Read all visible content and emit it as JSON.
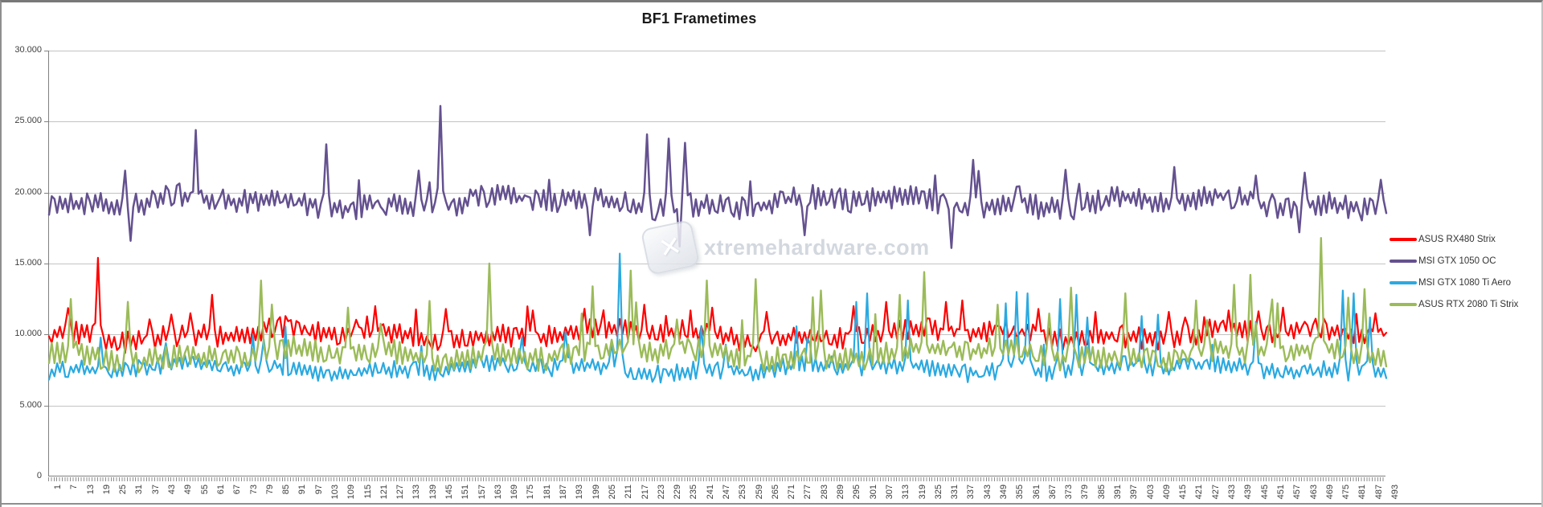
{
  "chart_data": {
    "type": "line",
    "title": "BF1 Frametimes",
    "n_points": 493,
    "y_axis": {
      "min": 0,
      "max": 30,
      "tick_labels": [
        "0",
        "5.000",
        "10.000",
        "15.000",
        "20.000",
        "25.000",
        "30.000"
      ]
    },
    "x_axis": {
      "ticks_every_point": true,
      "label_rotation_deg": -90,
      "tick_labels": [
        1,
        7,
        13,
        19,
        25,
        31,
        37,
        43,
        49,
        55,
        61,
        67,
        73,
        79,
        85,
        91,
        97,
        103,
        109,
        115,
        121,
        127,
        133,
        139,
        145,
        151,
        157,
        163,
        169,
        175,
        181,
        187,
        193,
        199,
        205,
        211,
        217,
        223,
        229,
        235,
        241,
        247,
        253,
        259,
        265,
        271,
        277,
        283,
        289,
        295,
        301,
        307,
        313,
        319,
        325,
        331,
        337,
        343,
        349,
        355,
        361,
        367,
        373,
        379,
        385,
        391,
        397,
        403,
        409,
        415,
        421,
        427,
        433,
        439,
        445,
        451,
        457,
        463,
        469,
        475,
        481,
        487,
        493
      ]
    },
    "series": [
      {
        "name": "ASUS RX480 Strix",
        "color": "#FE0000",
        "stroke_width": 2.2,
        "seed": 3,
        "base": 10.0,
        "amp": 0.8,
        "spike_rate": 0.04,
        "spike_mag": 2.0,
        "spikes": [
          [
            19,
            15.4
          ],
          [
            61,
            12.8
          ],
          [
            121,
            12.0
          ],
          [
            147,
            11.8
          ],
          [
            179,
            11.7
          ],
          [
            220,
            12.1
          ],
          [
            245,
            11.9
          ],
          [
            265,
            11.6
          ],
          [
            297,
            12.0
          ],
          [
            309,
            12.3
          ],
          [
            331,
            12.3
          ],
          [
            337,
            12.4
          ],
          [
            365,
            11.8
          ],
          [
            413,
            11.6
          ],
          [
            435,
            11.7
          ],
          [
            455,
            11.9
          ],
          [
            489,
            11.5
          ]
        ]
      },
      {
        "name": "MSI GTX 1050 OC",
        "color": "#64518F",
        "stroke_width": 2.5,
        "seed": 11,
        "base": 19.3,
        "amp": 0.85,
        "spike_rate": 0.03,
        "spike_mag": 2.4,
        "spikes": [
          [
            31,
            16.6
          ],
          [
            55,
            24.4
          ],
          [
            103,
            23.4
          ],
          [
            145,
            26.1
          ],
          [
            200,
            17.0
          ],
          [
            221,
            24.1
          ],
          [
            229,
            23.8
          ],
          [
            233,
            16.2
          ],
          [
            235,
            23.5
          ],
          [
            279,
            17.0
          ],
          [
            333,
            16.1
          ],
          [
            341,
            22.3
          ],
          [
            375,
            21.6
          ],
          [
            415,
            21.8
          ],
          [
            445,
            21.2
          ],
          [
            461,
            17.2
          ],
          [
            463,
            21.4
          ],
          [
            491,
            20.9
          ]
        ]
      },
      {
        "name": "MSI GTX 1080 Ti Aero",
        "color": "#2BA9E0",
        "stroke_width": 2.2,
        "seed": 5,
        "base": 7.6,
        "amp": 0.65,
        "spike_rate": 0.03,
        "spike_mag": 3.4,
        "spikes": [
          [
            211,
            15.7
          ],
          [
            241,
            10.6
          ],
          [
            298,
            12.3
          ],
          [
            302,
            12.9
          ],
          [
            317,
            12.4
          ],
          [
            353,
            12.2
          ],
          [
            357,
            13.0
          ],
          [
            361,
            12.9
          ],
          [
            373,
            12.5
          ],
          [
            379,
            12.8
          ],
          [
            383,
            11.2
          ],
          [
            403,
            11.3
          ],
          [
            409,
            11.4
          ],
          [
            445,
            10.9
          ],
          [
            477,
            13.1
          ],
          [
            481,
            12.9
          ],
          [
            487,
            11.2
          ]
        ]
      },
      {
        "name": "ASUS RTX 2080 Ti Strix",
        "color": "#9BBB59",
        "stroke_width": 2.4,
        "seed": 9,
        "base": 8.6,
        "amp": 0.85,
        "spike_rate": 0.05,
        "spike_mag": 4.2,
        "spikes": [
          [
            9,
            12.5
          ],
          [
            30,
            12.3
          ],
          [
            79,
            13.8
          ],
          [
            111,
            11.9
          ],
          [
            163,
            15.0
          ],
          [
            201,
            13.4
          ],
          [
            215,
            14.5
          ],
          [
            243,
            13.8
          ],
          [
            261,
            13.9
          ],
          [
            285,
            13.1
          ],
          [
            323,
            14.4
          ],
          [
            350,
            12.1
          ],
          [
            377,
            13.3
          ],
          [
            397,
            12.9
          ],
          [
            423,
            12.4
          ],
          [
            437,
            13.5
          ],
          [
            443,
            14.2
          ],
          [
            453,
            12.2
          ],
          [
            469,
            16.8
          ],
          [
            479,
            12.6
          ],
          [
            485,
            13.2
          ]
        ]
      }
    ],
    "legend_position": "right",
    "grid": "horizontal",
    "watermark": {
      "text": "xtremehardware.com",
      "color": "#ccd2da"
    }
  }
}
